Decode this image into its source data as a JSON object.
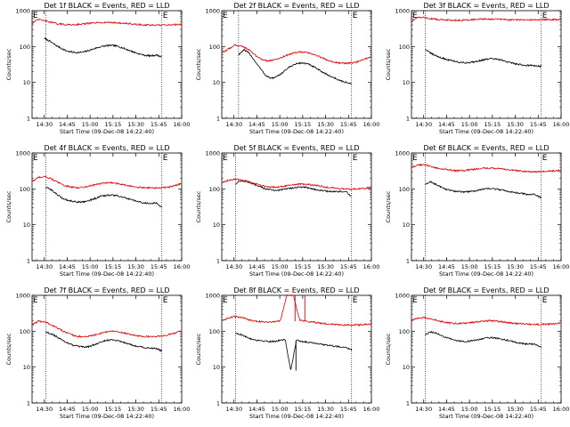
{
  "chart_data": [
    {
      "type": "line",
      "title": "Det 1f BLACK = Events, RED = LLD",
      "ylabel": "Counts/sec",
      "xlabel": "Start Time (09-Dec-08 14:22:40)",
      "yscale": "log",
      "ylim": [
        1,
        1000
      ],
      "xlim": [
        "14:22:40",
        "16:00"
      ],
      "y_ticks": [
        "1",
        "10",
        "100",
        "1000"
      ],
      "x_ticks": [
        "14:30",
        "14:45",
        "15:00",
        "15:15",
        "15:30",
        "15:45",
        "16:00"
      ],
      "markers": [
        {
          "label": "E",
          "time": "14:22"
        },
        {
          "label": "E",
          "time": "15:47"
        }
      ],
      "event_lines": [
        "14:31",
        "15:47"
      ],
      "series": [
        {
          "name": "Events",
          "color": "#000000",
          "start": "14:30",
          "end": "15:47",
          "values": [
            170,
            140,
            110,
            90,
            75,
            70,
            68,
            70,
            78,
            88,
            98,
            105,
            108,
            103,
            92,
            80,
            70,
            62,
            57,
            55,
            58,
            52
          ]
        },
        {
          "name": "LLD",
          "color": "#e00000",
          "start": "14:22",
          "end": "16:00",
          "values": [
            450,
            570,
            520,
            470,
            430,
            410,
            405,
            415,
            430,
            445,
            460,
            470,
            470,
            460,
            445,
            430,
            415,
            400,
            395,
            390,
            395,
            400,
            410,
            420
          ]
        }
      ]
    },
    {
      "type": "line",
      "title": "Det 2f BLACK = Events, RED = LLD",
      "ylabel": "Counts/sec",
      "xlabel": "Start Time (09-Dec-08 14:22:40)",
      "yscale": "log",
      "ylim": [
        1,
        1000
      ],
      "xlim": [
        "14:22:40",
        "16:00"
      ],
      "y_ticks": [
        "1",
        "10",
        "100",
        "1000"
      ],
      "x_ticks": [
        "14:30",
        "14:45",
        "15:00",
        "15:15",
        "15:30",
        "15:45",
        "16:00"
      ],
      "markers": [
        {
          "label": "E",
          "time": "14:22"
        },
        {
          "label": "E",
          "time": "15:47"
        }
      ],
      "event_lines": [
        "14:33",
        "15:47"
      ],
      "series": [
        {
          "name": "Events",
          "color": "#000000",
          "start": "14:33",
          "end": "15:47",
          "values": [
            60,
            80,
            65,
            40,
            25,
            16,
            13,
            14,
            18,
            24,
            30,
            34,
            35,
            32,
            27,
            22,
            18,
            15,
            13,
            11,
            10,
            9
          ]
        },
        {
          "name": "LLD",
          "color": "#e00000",
          "start": "14:22",
          "end": "16:00",
          "values": [
            65,
            85,
            110,
            105,
            85,
            60,
            45,
            40,
            42,
            48,
            58,
            66,
            70,
            68,
            62,
            52,
            44,
            38,
            35,
            34,
            35,
            38,
            45,
            50
          ]
        }
      ]
    },
    {
      "type": "line",
      "title": "Det 3f BLACK = Events, RED = LLD",
      "ylabel": "Counts/sec",
      "xlabel": "Start Time (09-Dec-08 14:22:40)",
      "yscale": "log",
      "ylim": [
        1,
        1000
      ],
      "xlim": [
        "14:22:40",
        "16:00"
      ],
      "y_ticks": [
        "1",
        "10",
        "100",
        "1000"
      ],
      "x_ticks": [
        "14:30",
        "14:45",
        "15:00",
        "15:15",
        "15:30",
        "15:45",
        "16:00"
      ],
      "markers": [
        {
          "label": "E",
          "time": "14:22"
        },
        {
          "label": "E",
          "time": "15:47"
        }
      ],
      "event_lines": [
        "14:31",
        "15:47"
      ],
      "series": [
        {
          "name": "Events",
          "color": "#000000",
          "start": "14:31",
          "end": "15:47",
          "values": [
            85,
            65,
            55,
            48,
            43,
            40,
            37,
            35,
            36,
            38,
            41,
            44,
            46,
            44,
            41,
            37,
            34,
            32,
            30,
            30,
            29,
            28
          ]
        },
        {
          "name": "LLD",
          "color": "#e00000",
          "start": "14:22",
          "end": "16:00",
          "values": [
            520,
            650,
            640,
            600,
            570,
            555,
            545,
            540,
            550,
            560,
            570,
            580,
            585,
            580,
            570,
            560,
            555,
            550,
            550,
            555,
            560,
            565,
            560,
            560
          ]
        }
      ]
    },
    {
      "type": "line",
      "title": "Det 4f BLACK = Events, RED = LLD",
      "ylabel": "Counts/sec",
      "xlabel": "Start Time (09-Dec-08 14:22:40)",
      "yscale": "log",
      "ylim": [
        1,
        1000
      ],
      "xlim": [
        "14:22:40",
        "16:00"
      ],
      "y_ticks": [
        "1",
        "10",
        "100",
        "1000"
      ],
      "x_ticks": [
        "14:30",
        "14:45",
        "15:00",
        "15:15",
        "15:30",
        "15:45",
        "16:00"
      ],
      "markers": [
        {
          "label": "E",
          "time": "14:22"
        },
        {
          "label": "E",
          "time": "15:47"
        }
      ],
      "event_lines": [
        "14:31",
        "15:47"
      ],
      "series": [
        {
          "name": "Events",
          "color": "#000000",
          "start": "14:31",
          "end": "15:47",
          "values": [
            110,
            95,
            70,
            55,
            48,
            45,
            43,
            44,
            48,
            55,
            62,
            66,
            67,
            64,
            58,
            52,
            47,
            43,
            40,
            40,
            40,
            30
          ]
        },
        {
          "name": "LLD",
          "color": "#e00000",
          "start": "14:22",
          "end": "16:00",
          "values": [
            160,
            210,
            220,
            190,
            150,
            125,
            112,
            108,
            112,
            122,
            135,
            145,
            148,
            142,
            132,
            122,
            113,
            108,
            106,
            106,
            108,
            112,
            125,
            140
          ]
        }
      ]
    },
    {
      "type": "line",
      "title": "Det 5f BLACK = Events, RED = LLD",
      "ylabel": "Counts/sec",
      "xlabel": "Start Time (09-Dec-08 14:22:40)",
      "yscale": "log",
      "ylim": [
        1,
        1000
      ],
      "xlim": [
        "14:22:40",
        "16:00"
      ],
      "y_ticks": [
        "1",
        "10",
        "100",
        "1000"
      ],
      "x_ticks": [
        "14:30",
        "14:45",
        "15:00",
        "15:15",
        "15:30",
        "15:45",
        "16:00"
      ],
      "markers": [
        {
          "label": "E",
          "time": "14:22"
        },
        {
          "label": "E",
          "time": "15:47"
        }
      ],
      "event_lines": [
        "14:31",
        "15:47"
      ],
      "series": [
        {
          "name": "Events",
          "color": "#000000",
          "start": "14:31",
          "end": "15:47",
          "values": [
            140,
            170,
            160,
            140,
            120,
            105,
            96,
            92,
            93,
            98,
            104,
            110,
            112,
            108,
            100,
            93,
            88,
            85,
            84,
            84,
            84,
            60
          ]
        },
        {
          "name": "LLD",
          "color": "#e00000",
          "start": "14:22",
          "end": "16:00",
          "values": [
            150,
            175,
            185,
            180,
            160,
            140,
            125,
            115,
            112,
            115,
            122,
            130,
            135,
            134,
            128,
            120,
            112,
            106,
            102,
            100,
            99,
            100,
            103,
            110
          ]
        }
      ]
    },
    {
      "type": "line",
      "title": "Det 6f BLACK = Events, RED = LLD",
      "ylabel": "Counts/sec",
      "xlabel": "Start Time (09-Dec-08 14:22:40)",
      "yscale": "log",
      "ylim": [
        1,
        1000
      ],
      "xlim": [
        "14:22:40",
        "16:00"
      ],
      "y_ticks": [
        "1",
        "10",
        "100",
        "1000"
      ],
      "x_ticks": [
        "14:30",
        "14:45",
        "15:00",
        "15:15",
        "15:30",
        "15:45",
        "16:00"
      ],
      "markers": [
        {
          "label": "E",
          "time": "14:22"
        },
        {
          "label": "E",
          "time": "15:47"
        }
      ],
      "event_lines": [
        "14:31",
        "15:47"
      ],
      "series": [
        {
          "name": "Events",
          "color": "#000000",
          "start": "14:31",
          "end": "15:47",
          "values": [
            130,
            160,
            130,
            110,
            95,
            88,
            84,
            82,
            84,
            88,
            95,
            100,
            102,
            98,
            92,
            86,
            80,
            76,
            72,
            70,
            69,
            55
          ]
        },
        {
          "name": "LLD",
          "color": "#e00000",
          "start": "14:22",
          "end": "16:00",
          "values": [
            400,
            460,
            470,
            420,
            380,
            350,
            330,
            320,
            325,
            340,
            360,
            375,
            380,
            372,
            355,
            338,
            325,
            312,
            305,
            300,
            302,
            310,
            320,
            330
          ]
        }
      ]
    },
    {
      "type": "line",
      "title": "Det 7f BLACK = Events, RED = LLD",
      "ylabel": "Counts/sec",
      "xlabel": "Start Time (09-Dec-08 14:22:40)",
      "yscale": "log",
      "ylim": [
        1,
        1000
      ],
      "xlim": [
        "14:22:40",
        "16:00"
      ],
      "y_ticks": [
        "1",
        "10",
        "100",
        "1000"
      ],
      "x_ticks": [
        "14:30",
        "14:45",
        "15:00",
        "15:15",
        "15:30",
        "15:45",
        "16:00"
      ],
      "markers": [
        {
          "label": "E",
          "time": "14:22"
        },
        {
          "label": "E",
          "time": "15:47"
        }
      ],
      "event_lines": [
        "14:31",
        "15:47"
      ],
      "series": [
        {
          "name": "Events",
          "color": "#000000",
          "start": "14:31",
          "end": "15:47",
          "values": [
            95,
            85,
            70,
            56,
            47,
            40,
            37,
            36,
            38,
            43,
            50,
            56,
            58,
            55,
            50,
            44,
            40,
            37,
            35,
            34,
            33,
            28
          ]
        },
        {
          "name": "LLD",
          "color": "#e00000",
          "start": "14:22",
          "end": "16:00",
          "values": [
            150,
            190,
            180,
            150,
            120,
            95,
            80,
            72,
            70,
            74,
            82,
            92,
            100,
            98,
            90,
            82,
            76,
            72,
            70,
            71,
            74,
            80,
            90,
            105
          ]
        }
      ]
    },
    {
      "type": "line",
      "title": "Det 8f BLACK = Events, RED = LLD",
      "ylabel": "Counts/sec",
      "xlabel": "Start Time (09-Dec-08 14:22:40)",
      "yscale": "log",
      "ylim": [
        1,
        1000
      ],
      "xlim": [
        "14:22:40",
        "16:00"
      ],
      "y_ticks": [
        "1",
        "10",
        "100",
        "1000"
      ],
      "x_ticks": [
        "14:30",
        "14:45",
        "15:00",
        "15:15",
        "15:30",
        "15:45",
        "16:00"
      ],
      "markers": [
        {
          "label": "E",
          "time": "14:22"
        },
        {
          "label": "E",
          "time": "15:47"
        }
      ],
      "event_lines": [
        "14:31",
        "15:47"
      ],
      "spike": {
        "time": "15:10",
        "red_peak": 1000,
        "black_dip": 8
      },
      "series": [
        {
          "name": "Events",
          "color": "#000000",
          "start": "14:31",
          "end": "15:47",
          "values": [
            90,
            80,
            68,
            60,
            56,
            54,
            52,
            52,
            55,
            58,
            8,
            56,
            52,
            50,
            48,
            45,
            42,
            40,
            38,
            37,
            36,
            30
          ]
        },
        {
          "name": "LLD",
          "color": "#e00000",
          "start": "14:22",
          "end": "16:00",
          "values": [
            200,
            230,
            260,
            240,
            215,
            195,
            185,
            180,
            185,
            195,
            1000,
            1000,
            200,
            190,
            180,
            170,
            162,
            156,
            152,
            150,
            150,
            150,
            155,
            160
          ]
        }
      ]
    },
    {
      "type": "line",
      "title": "Det 9f BLACK = Events, RED = LLD",
      "ylabel": "Counts/sec",
      "xlabel": "Start Time (09-Dec-08 14:22:40)",
      "yscale": "log",
      "ylim": [
        1,
        1000
      ],
      "xlim": [
        "14:22:40",
        "16:00"
      ],
      "y_ticks": [
        "1",
        "10",
        "100",
        "1000"
      ],
      "x_ticks": [
        "14:30",
        "14:45",
        "15:00",
        "15:15",
        "15:30",
        "15:45",
        "16:00"
      ],
      "markers": [
        {
          "label": "E",
          "time": "14:22"
        },
        {
          "label": "E",
          "time": "15:47"
        }
      ],
      "event_lines": [
        "14:31",
        "15:47"
      ],
      "series": [
        {
          "name": "Events",
          "color": "#000000",
          "start": "14:31",
          "end": "15:47",
          "values": [
            80,
            95,
            88,
            75,
            65,
            58,
            54,
            52,
            53,
            56,
            60,
            64,
            66,
            64,
            60,
            55,
            51,
            47,
            45,
            44,
            43,
            35
          ]
        },
        {
          "name": "LLD",
          "color": "#e00000",
          "start": "14:22",
          "end": "16:00",
          "values": [
            200,
            230,
            240,
            225,
            200,
            180,
            168,
            162,
            165,
            172,
            182,
            190,
            195,
            192,
            182,
            172,
            165,
            160,
            157,
            155,
            155,
            158,
            162,
            170
          ]
        }
      ]
    }
  ]
}
